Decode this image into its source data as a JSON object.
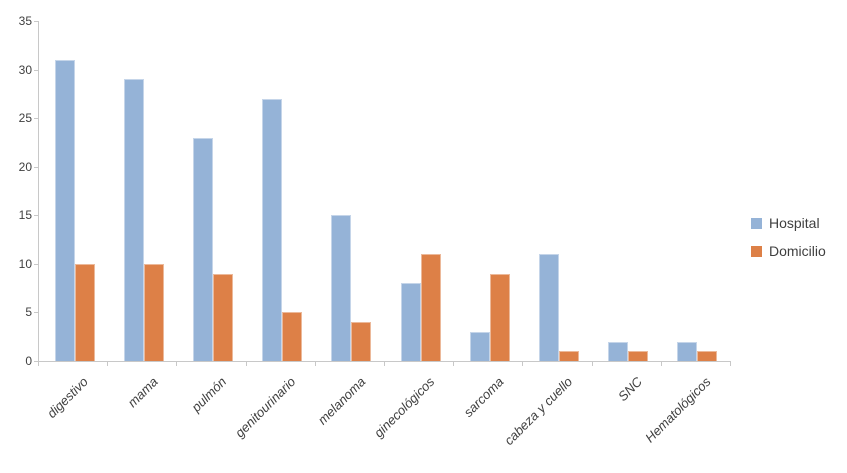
{
  "chart_data": {
    "type": "bar",
    "title": "",
    "xlabel": "",
    "ylabel": "",
    "categories": [
      "digestivo",
      "mama",
      "pulmón",
      "genitourinario",
      "melanoma",
      "ginecológicos",
      "sarcoma",
      "cabeza y cuello",
      "SNC",
      "Hematológicos"
    ],
    "series": [
      {
        "name": "Hospital",
        "color": "#95b3d7",
        "values": [
          31,
          29,
          23,
          27,
          15,
          8,
          3,
          11,
          2,
          2
        ]
      },
      {
        "name": "Domicilio",
        "color": "#dd8047",
        "values": [
          10,
          10,
          9,
          5,
          4,
          11,
          9,
          1,
          1,
          1
        ]
      }
    ],
    "ylim": [
      0,
      35
    ],
    "yticks": [
      0,
      5,
      10,
      15,
      20,
      25,
      30,
      35
    ],
    "grid": false,
    "legend_position": "right",
    "category_label_rotation_deg": -45,
    "category_label_style": "italic"
  },
  "colors": {
    "axis": "#c8c8c8",
    "text": "#3f3f3f",
    "background": "#ffffff"
  }
}
